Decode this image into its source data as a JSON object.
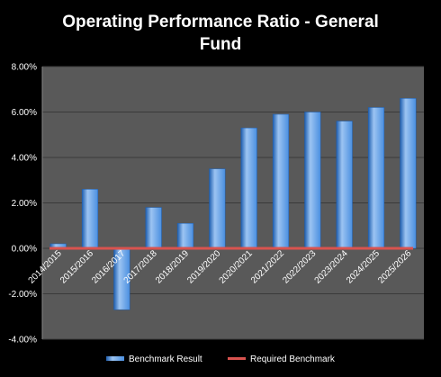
{
  "chart_data": {
    "type": "bar",
    "title_lines": [
      "Operating Performance Ratio - General",
      "Fund"
    ],
    "categories": [
      "2014/2015",
      "2015/2016",
      "2016/2017",
      "2017/2018",
      "2018/2019",
      "2019/2020",
      "2020/2021",
      "2021/2022",
      "2022/2023",
      "2023/2024",
      "2024/2025",
      "2025/2026"
    ],
    "series": [
      {
        "name": "Benchmark Result",
        "type": "bar",
        "values": [
          0.2,
          2.6,
          -2.7,
          1.8,
          1.1,
          3.5,
          5.3,
          5.9,
          6.0,
          5.6,
          6.2,
          6.6
        ]
      },
      {
        "name": "Required Benchmark",
        "type": "line",
        "values": [
          0,
          0,
          0,
          0,
          0,
          0,
          0,
          0,
          0,
          0,
          0,
          0
        ]
      }
    ],
    "yticks": [
      "8.00%",
      "6.00%",
      "4.00%",
      "2.00%",
      "0.00%",
      "-2.00%",
      "-4.00%"
    ],
    "ylim": [
      -4,
      8
    ],
    "grid": true,
    "legend_position": "bottom",
    "colors": {
      "plot_bg": "#595959",
      "bar": "#4a8fe0",
      "bar_light": "#9cc4f2",
      "bar_dark": "#1f5fb0",
      "line": "#d9534f",
      "grid": "#3a3a3a",
      "axis": "#888888"
    }
  }
}
